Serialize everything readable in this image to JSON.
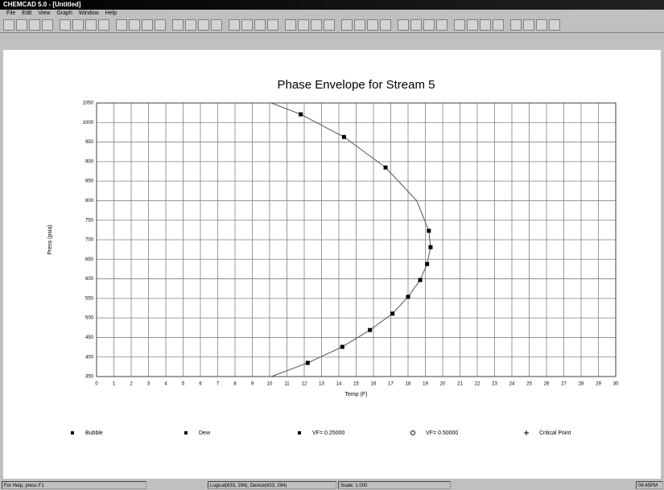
{
  "window": {
    "title": "CHEMCAD 5.0 - [Untitled]"
  },
  "menu": [
    "File",
    "Edit",
    "View",
    "Graph",
    "Window",
    "Help"
  ],
  "status_bar": [
    "For Help, press F1",
    "Logical(633, 294), Device(633, 294)",
    "Scale: 1.000",
    "06:45PM"
  ],
  "chart_data": {
    "type": "scatter",
    "title": "Phase Envelope for Stream 5",
    "x_label": "Temp (F)",
    "y_label": "Press (psia)",
    "xlim": [
      0,
      30
    ],
    "ylim": [
      350,
      1050
    ],
    "xticks": [
      0,
      1,
      2,
      3,
      4,
      5,
      6,
      7,
      8,
      9,
      10,
      11,
      12,
      13,
      14,
      15,
      16,
      17,
      18,
      19,
      20,
      21,
      22,
      23,
      24,
      25,
      26,
      27,
      28,
      29,
      30
    ],
    "yticks": [
      350,
      400,
      450,
      500,
      550,
      600,
      650,
      700,
      750,
      800,
      850,
      900,
      950,
      1000,
      1050
    ],
    "grid": true,
    "series": [
      {
        "type": "line",
        "color": "#555555",
        "x": [
          10.1,
          11.8,
          14.3,
          16.7,
          18.5,
          19.2,
          19.3,
          19.1,
          18.7,
          18.0,
          17.1,
          15.8,
          14.2,
          12.2,
          10.1
        ],
        "values": [
          1050,
          1021,
          963,
          885,
          800,
          723,
          681,
          638,
          597,
          554,
          511,
          469,
          426,
          385,
          350
        ]
      },
      {
        "type": "scatter",
        "name": "Bubble",
        "color": "#000000",
        "x": [
          19.3,
          19.1,
          18.7,
          18.0,
          17.1,
          15.8,
          14.2,
          12.2
        ],
        "values": [
          681,
          638,
          597,
          554,
          511,
          469,
          426,
          385
        ]
      },
      {
        "type": "scatter",
        "name": "Dew",
        "color": "#000000",
        "x": [
          11.8,
          14.3,
          16.7,
          19.2
        ],
        "values": [
          1021,
          963,
          885,
          723
        ]
      }
    ],
    "legend_extra": [
      "VF= 0.25000",
      "VF= 0.50000",
      "Critical Point"
    ]
  }
}
